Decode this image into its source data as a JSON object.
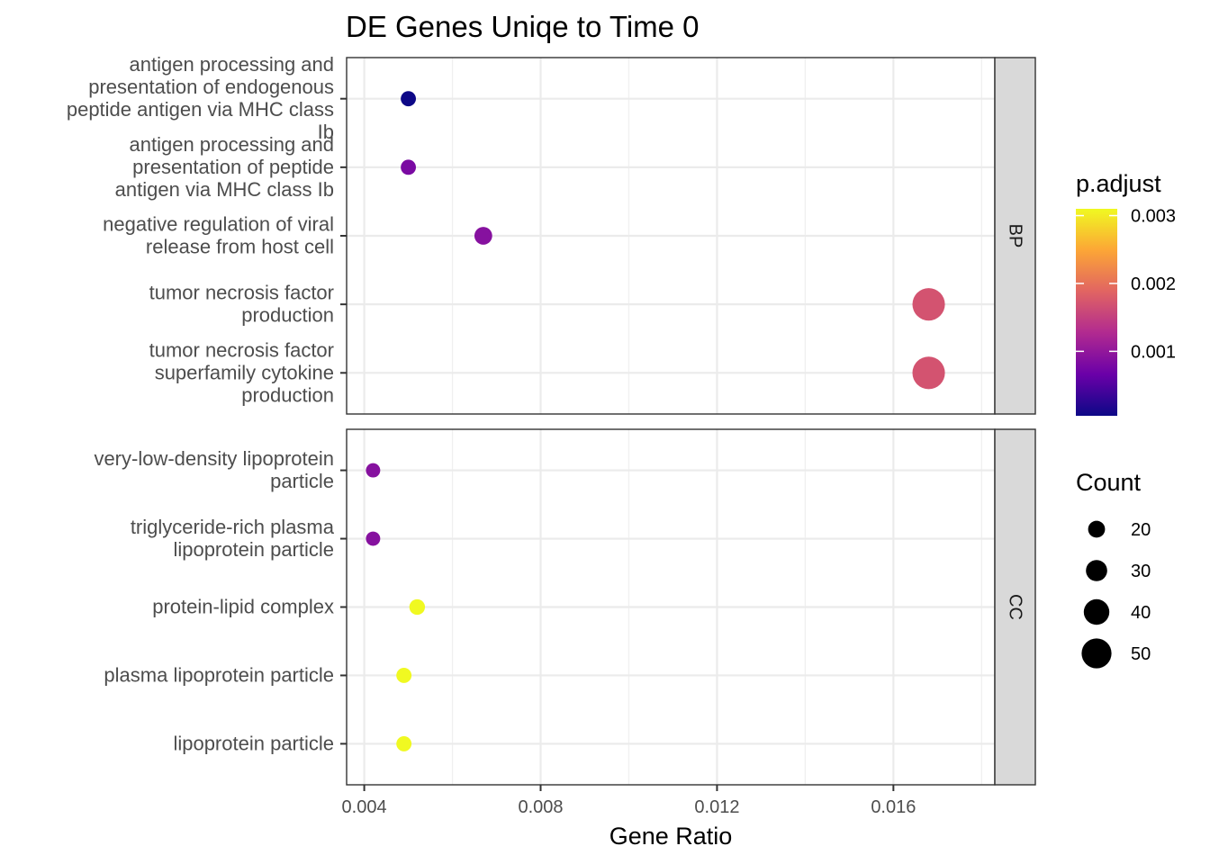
{
  "chart_data": {
    "type": "scatter",
    "title": "DE Genes Uniqe to Time 0",
    "xlabel": "Gene Ratio",
    "ylabel": "",
    "xlim": [
      0.0036,
      0.0183
    ],
    "xticks": [
      "0.004",
      "0.008",
      "0.012",
      "0.016"
    ],
    "xtick_values": [
      0.004,
      0.008,
      0.012,
      0.016
    ],
    "grid": true,
    "panels": [
      {
        "strip": "BP",
        "points": [
          {
            "term": "antigen processing and presentation of endogenous peptide antigen via MHC class Ib",
            "x": 0.005,
            "count": 16,
            "p_adjust": 5e-05
          },
          {
            "term": "antigen processing and presentation of peptide antigen via MHC class Ib",
            "x": 0.005,
            "count": 16,
            "p_adjust": 0.0008
          },
          {
            "term": "negative regulation of viral release from host cell",
            "x": 0.0067,
            "count": 22,
            "p_adjust": 0.0009
          },
          {
            "term": "tumor necrosis factor production",
            "x": 0.0168,
            "count": 56,
            "p_adjust": 0.0017
          },
          {
            "term": "tumor necrosis factor superfamily cytokine production",
            "x": 0.0168,
            "count": 56,
            "p_adjust": 0.0017
          }
        ]
      },
      {
        "strip": "CC",
        "points": [
          {
            "term": "very-low-density lipoprotein particle",
            "x": 0.0042,
            "count": 14,
            "p_adjust": 0.0009
          },
          {
            "term": "triglyceride-rich plasma lipoprotein particle",
            "x": 0.0042,
            "count": 14,
            "p_adjust": 0.0009
          },
          {
            "term": "protein-lipid complex",
            "x": 0.0052,
            "count": 17,
            "p_adjust": 0.0031
          },
          {
            "term": "plasma lipoprotein particle",
            "x": 0.0049,
            "count": 16,
            "p_adjust": 0.0031
          },
          {
            "term": "lipoprotein particle",
            "x": 0.0049,
            "count": 16,
            "p_adjust": 0.0031
          }
        ]
      }
    ],
    "color_legend": {
      "title": "p.adjust",
      "ticks": [
        "0.001",
        "0.002",
        "0.003"
      ],
      "tick_values": [
        0.001,
        0.002,
        0.003
      ],
      "range": [
        5e-05,
        0.0031
      ],
      "colors": [
        "#0d0887",
        "#6a00a8",
        "#b12a90",
        "#e16462",
        "#fca636",
        "#f0f921"
      ]
    },
    "size_legend": {
      "title": "Count",
      "labels": [
        "20",
        "30",
        "40",
        "50"
      ],
      "values": [
        20,
        30,
        40,
        50
      ],
      "color": "#000000"
    },
    "legend_position": "right"
  }
}
